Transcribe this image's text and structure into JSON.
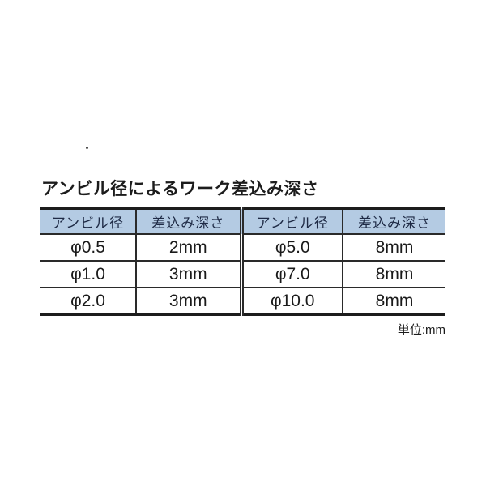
{
  "title": "アンビル径によるワーク差込み深さ",
  "unit_note": "単位:mm",
  "colors": {
    "header_bg": "#b4cbe3",
    "header_text": "#1e2a45",
    "border_thick": "#1c1c1c",
    "border_thin": "#2a2a2a",
    "body_text": "#1a1a1a",
    "page_bg": "#ffffff"
  },
  "table": {
    "headers": [
      "アンビル径",
      "差込み深さ",
      "アンビル径",
      "差込み深さ"
    ],
    "rows": [
      [
        "φ0.5",
        "2mm",
        "φ5.0",
        "8mm"
      ],
      [
        "φ1.0",
        "3mm",
        "φ7.0",
        "8mm"
      ],
      [
        "φ2.0",
        "3mm",
        "φ10.0",
        "8mm"
      ]
    ]
  }
}
